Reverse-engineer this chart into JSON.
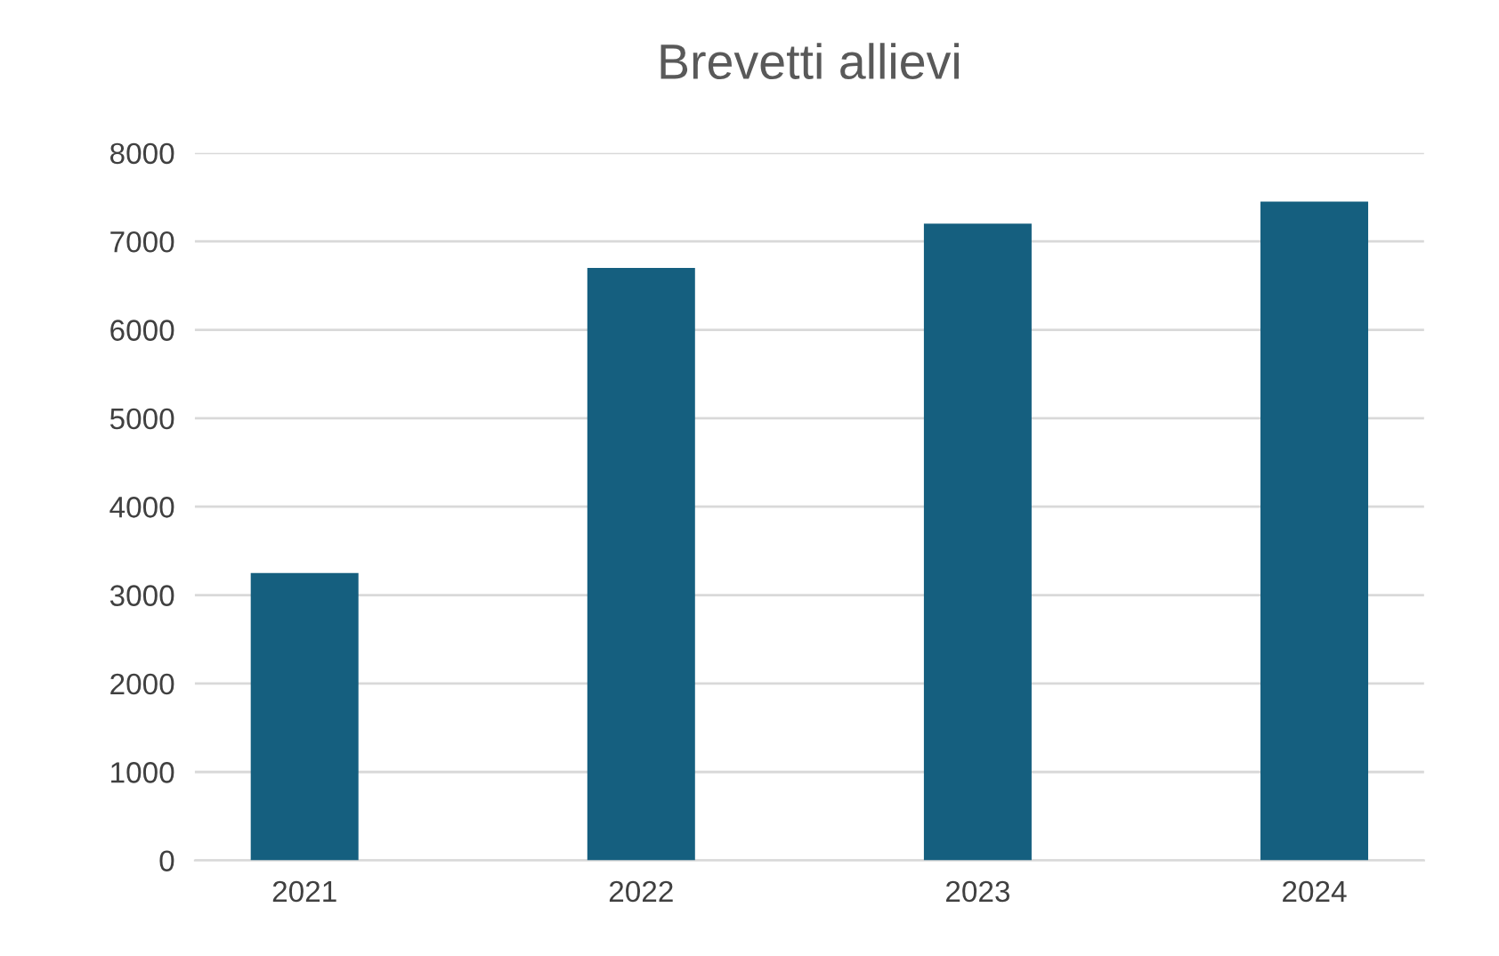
{
  "chart_data": {
    "type": "bar",
    "title": "Brevetti allievi",
    "categories": [
      "2021",
      "2022",
      "2023",
      "2024"
    ],
    "values": [
      3250,
      6700,
      7200,
      7450
    ],
    "color": "#155f7f",
    "ylim": [
      0,
      8000
    ],
    "yticks": [
      0,
      1000,
      2000,
      3000,
      4000,
      5000,
      6000,
      7000,
      8000
    ],
    "grid": "y"
  }
}
